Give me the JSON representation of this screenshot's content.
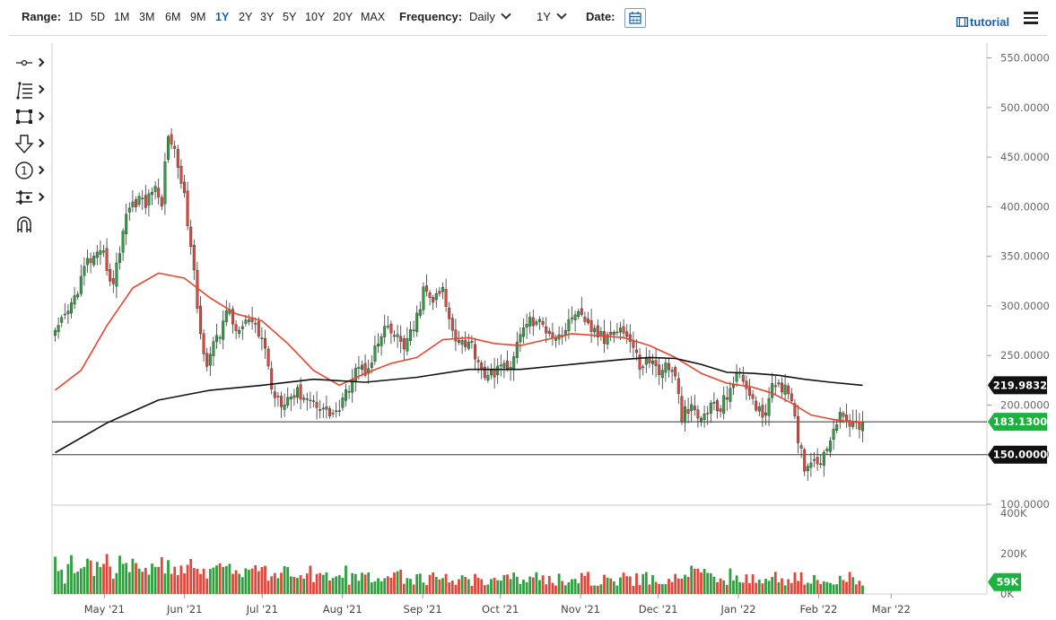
{
  "toolbar": {
    "range_label": "Range:",
    "ranges": [
      "1D",
      "5D",
      "1M",
      "3M",
      "6M",
      "9M",
      "1Y",
      "2Y",
      "3Y",
      "5Y",
      "10Y",
      "20Y",
      "MAX"
    ],
    "active_range": "1Y",
    "frequency_label": "Frequency:",
    "frequency_value": "Daily",
    "period_value": "1Y",
    "date_label": "Date:",
    "tutorial_label": "tutorial"
  },
  "drawing_tools": [
    "line-tool-icon",
    "fib-tool-icon",
    "rectangle-tool-icon",
    "arrow-tool-icon",
    "counter-tool-icon",
    "measure-tool-icon",
    "magnet-icon"
  ],
  "colors": {
    "up": "#2e9e3e",
    "down": "#e0473a",
    "sma50": "#e8452c",
    "sma200": "#111111",
    "last_price_tag": "#19b33e"
  },
  "chart_data": {
    "type": "candlestick",
    "price_axis": {
      "ticks": [
        "550.0000",
        "500.0000",
        "450.0000",
        "400.0000",
        "350.0000",
        "300.0000",
        "250.0000",
        "200.0000",
        "150.0000",
        "100.0000"
      ],
      "range": [
        100,
        565
      ]
    },
    "volume_axis": {
      "ticks": [
        "400K",
        "200K",
        "0K"
      ],
      "range": [
        0,
        400000
      ]
    },
    "x_ticks": [
      "May '21",
      "Jun '21",
      "Jul '21",
      "Aug '21",
      "Sep '21",
      "Oct '21",
      "Nov '21",
      "Dec '21",
      "Jan '22",
      "Feb '22",
      "Mar '22"
    ],
    "price_tags": {
      "sma200": "219.9832",
      "last": "183.1300",
      "level": "150.0000"
    },
    "volume_tag": "59K",
    "horizontal_lines": [
      183.13,
      150.0
    ],
    "start_date": "2021-04-12",
    "end_date": "2022-02-18",
    "price_path": [
      [
        0,
        270
      ],
      [
        5,
        300
      ],
      [
        10,
        345
      ],
      [
        15,
        350
      ],
      [
        18,
        320
      ],
      [
        22,
        395
      ],
      [
        26,
        410
      ],
      [
        28,
        400
      ],
      [
        30,
        420
      ],
      [
        33,
        405
      ],
      [
        35,
        475
      ],
      [
        37,
        455
      ],
      [
        39,
        430
      ],
      [
        41,
        385
      ],
      [
        43,
        330
      ],
      [
        45,
        270
      ],
      [
        47,
        245
      ],
      [
        49,
        260
      ],
      [
        51,
        270
      ],
      [
        53,
        300
      ],
      [
        55,
        280
      ],
      [
        57,
        275
      ],
      [
        60,
        285
      ],
      [
        63,
        270
      ],
      [
        65,
        260
      ],
      [
        67,
        215
      ],
      [
        70,
        205
      ],
      [
        73,
        210
      ],
      [
        76,
        212
      ],
      [
        79,
        205
      ],
      [
        82,
        200
      ],
      [
        85,
        192
      ],
      [
        88,
        195
      ],
      [
        90,
        210
      ],
      [
        93,
        240
      ],
      [
        96,
        235
      ],
      [
        99,
        255
      ],
      [
        102,
        275
      ],
      [
        105,
        270
      ],
      [
        108,
        260
      ],
      [
        111,
        275
      ],
      [
        114,
        315
      ],
      [
        117,
        305
      ],
      [
        120,
        315
      ],
      [
        122,
        285
      ],
      [
        124,
        270
      ],
      [
        126,
        265
      ],
      [
        129,
        260
      ],
      [
        131,
        245
      ],
      [
        134,
        225
      ],
      [
        137,
        240
      ],
      [
        140,
        235
      ],
      [
        143,
        260
      ],
      [
        146,
        285
      ],
      [
        149,
        283
      ],
      [
        152,
        278
      ],
      [
        155,
        270
      ],
      [
        158,
        275
      ],
      [
        161,
        295
      ],
      [
        164,
        280
      ],
      [
        167,
        275
      ],
      [
        170,
        265
      ],
      [
        173,
        280
      ],
      [
        176,
        275
      ],
      [
        178,
        265
      ],
      [
        181,
        240
      ],
      [
        184,
        245
      ],
      [
        187,
        235
      ],
      [
        190,
        240
      ],
      [
        192,
        225
      ],
      [
        194,
        190
      ],
      [
        197,
        195
      ],
      [
        200,
        185
      ],
      [
        203,
        200
      ],
      [
        206,
        195
      ],
      [
        209,
        220
      ],
      [
        212,
        230
      ],
      [
        215,
        215
      ],
      [
        217,
        195
      ],
      [
        219,
        190
      ],
      [
        222,
        215
      ],
      [
        224,
        225
      ],
      [
        226,
        215
      ],
      [
        228,
        200
      ],
      [
        230,
        165
      ],
      [
        232,
        140
      ],
      [
        235,
        145
      ],
      [
        238,
        148
      ],
      [
        240,
        170
      ],
      [
        242,
        185
      ],
      [
        245,
        188
      ],
      [
        247,
        178
      ],
      [
        250,
        183
      ]
    ],
    "sma50_path": [
      [
        0,
        215
      ],
      [
        8,
        235
      ],
      [
        16,
        280
      ],
      [
        24,
        318
      ],
      [
        32,
        333
      ],
      [
        40,
        328
      ],
      [
        48,
        308
      ],
      [
        56,
        292
      ],
      [
        64,
        285
      ],
      [
        72,
        262
      ],
      [
        80,
        235
      ],
      [
        88,
        220
      ],
      [
        96,
        232
      ],
      [
        104,
        242
      ],
      [
        112,
        248
      ],
      [
        120,
        266
      ],
      [
        128,
        268
      ],
      [
        136,
        262
      ],
      [
        144,
        260
      ],
      [
        152,
        266
      ],
      [
        160,
        272
      ],
      [
        168,
        270
      ],
      [
        176,
        268
      ],
      [
        184,
        260
      ],
      [
        192,
        248
      ],
      [
        200,
        232
      ],
      [
        208,
        222
      ],
      [
        216,
        218
      ],
      [
        222,
        212
      ],
      [
        228,
        202
      ],
      [
        234,
        190
      ],
      [
        240,
        186
      ],
      [
        246,
        183
      ],
      [
        250,
        183
      ]
    ],
    "sma200_path": [
      [
        0,
        152
      ],
      [
        16,
        182
      ],
      [
        32,
        205
      ],
      [
        48,
        215
      ],
      [
        64,
        220
      ],
      [
        80,
        226
      ],
      [
        96,
        223
      ],
      [
        112,
        228
      ],
      [
        128,
        236
      ],
      [
        144,
        236
      ],
      [
        160,
        241
      ],
      [
        176,
        246
      ],
      [
        184,
        248
      ],
      [
        192,
        247
      ],
      [
        200,
        241
      ],
      [
        208,
        233
      ],
      [
        216,
        232
      ],
      [
        224,
        230
      ],
      [
        232,
        226
      ],
      [
        240,
        223
      ],
      [
        250,
        220
      ]
    ]
  }
}
